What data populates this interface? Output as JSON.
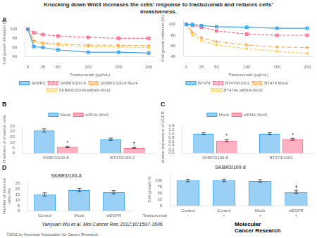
{
  "title": "Knocking down Wnt3 increases the cells’ response to trastuzumab and reduces cells’\ninvasiveness.",
  "annotations": [
    {
      "text": "Yanyuan Wu et al. Mol Cancer Res 2012;10:1597-1606"
    },
    {
      "text": "©2012 by American Association for Cancer Research"
    },
    {
      "text": "Molecular\nCancer Research"
    }
  ],
  "chart_data": [
    {
      "type": "line",
      "x_label": "Trastuzumab (μg/mL)",
      "y_label": "Cell growth inhibition (%)",
      "x": [
        0,
        10,
        25,
        50,
        100,
        150,
        200
      ],
      "series": [
        {
          "name": "SKBR3",
          "values": [
            100,
            62,
            60,
            55,
            50,
            50,
            48
          ],
          "marker": "square",
          "line_style": "solid"
        },
        {
          "name": "SKBR3/100-8",
          "values": [
            100,
            92,
            88,
            85,
            82,
            80,
            80
          ],
          "marker": "square",
          "line_style": "dashed"
        },
        {
          "name": "SKBR3/100-8 Mock",
          "values": [
            100,
            75,
            70,
            68,
            65,
            65,
            64
          ],
          "marker": "plus",
          "line_style": "dashdot"
        },
        {
          "name": "SKBR3/100-8+siRNA-Wnt3",
          "values": [
            100,
            72,
            67,
            65,
            62,
            61,
            60
          ],
          "marker": "x",
          "line_style": "dashed"
        }
      ],
      "xlim": [
        -5,
        210
      ],
      "xticks": [
        0,
        25,
        50,
        100,
        150,
        200
      ],
      "ylim": [
        40,
        108
      ],
      "yticks": [
        40,
        60,
        80,
        100
      ],
      "grid": false,
      "legend": "bottom",
      "annotations": [
        {
          "text": "A"
        }
      ]
    },
    {
      "type": "line",
      "x_label": "Trastuzumab (μg/mL)",
      "y_label": "Cell growth inhibition (%)",
      "x": [
        0,
        10,
        25,
        50,
        100,
        150,
        200
      ],
      "series": [
        {
          "name": "BT474",
          "values": [
            100,
            100,
            98,
            96,
            95,
            93,
            93
          ],
          "marker": "square",
          "line_style": "solid"
        },
        {
          "name": "BT474/100-2",
          "values": [
            100,
            98,
            95,
            88,
            82,
            80,
            80
          ],
          "marker": "square",
          "line_style": "dashed"
        },
        {
          "name": "BT474 Mock",
          "values": [
            100,
            85,
            75,
            68,
            62,
            58,
            57
          ],
          "marker": "plus",
          "line_style": "dashdot"
        },
        {
          "name": "BT474s siRNA-Wnt3",
          "values": [
            100,
            80,
            70,
            62,
            55,
            50,
            46
          ],
          "marker": "x",
          "line_style": "dashed"
        }
      ],
      "xlim": [
        -5,
        210
      ],
      "xticks": [
        0,
        25,
        50,
        100,
        150,
        200
      ],
      "ylim": [
        40,
        108
      ],
      "yticks": [
        40,
        60,
        80,
        100
      ],
      "grid": false,
      "legend": "bottom"
    },
    {
      "type": "bar",
      "y_label": "Numbers of invasive cells",
      "categories": [
        "SKBR3/100-8",
        "BT474/100-2"
      ],
      "series": [
        {
          "name": "Mock",
          "values": [
            21,
            13
          ],
          "errors": [
            1.5,
            1.0
          ]
        },
        {
          "name": "siRNA-Wnt3",
          "values": [
            6,
            5
          ],
          "errors": [
            0.5,
            0.5
          ]
        }
      ],
      "ylim": [
        0,
        27
      ],
      "yticks": [
        0,
        5,
        10,
        15,
        20,
        25
      ],
      "grid": false,
      "legend": "top",
      "annotations": [
        {
          "text": "B"
        },
        {
          "text": "*",
          "series": "siRNA-Wnt3",
          "category": "SKBR3/100-8"
        },
        {
          "text": "†",
          "series": "siRNA-Wnt3",
          "category": "BT474/100-2"
        }
      ]
    },
    {
      "type": "bar",
      "y_label": "Relative expression of EGFR",
      "categories": [
        "SKBR3/100-8",
        "BT474/1002"
      ],
      "series": [
        {
          "name": "Mock",
          "values": [
            1.0,
            1.0
          ],
          "errors": [
            0.05,
            0.05
          ]
        },
        {
          "name": "siRNA-Wnt3",
          "values": [
            0.65,
            0.72
          ],
          "errors": [
            0.05,
            0.05
          ]
        }
      ],
      "ylim": [
        0,
        1.5
      ],
      "yticks": [
        {
          "value": 0,
          "label": "0.0"
        },
        0.2,
        0.4,
        0.6,
        0.8,
        {
          "value": 1,
          "label": "1.0"
        },
        1.2,
        1.4
      ],
      "grid": false,
      "legend": "top",
      "annotations": [
        {
          "text": "C"
        },
        {
          "text": "*",
          "series": "siRNA-Wnt3",
          "category": "SKBR3/100-8"
        },
        {
          "text": "*",
          "series": "siRNA-Wnt3",
          "category": "BT474/1002"
        }
      ]
    },
    {
      "type": "bar",
      "title": "SKBR3/100-8",
      "y_label": "Number of invasive\ncells (%)",
      "categories": [
        "Control",
        "Mock",
        "siEGFR"
      ],
      "values": [
        15,
        19,
        17
      ],
      "errors": [
        1.5,
        1.5,
        1.5
      ],
      "ylim": [
        0,
        27
      ],
      "yticks": [
        0,
        5,
        10,
        15,
        20,
        25
      ],
      "grid": false,
      "annotations": [
        {
          "text": "D"
        }
      ]
    },
    {
      "type": "bar",
      "title": "SKBR3/100-8",
      "y_label": "Cell growth %",
      "categories": [
        "Control",
        "Control",
        "Mock",
        "siEGFR"
      ],
      "category_row": {
        "name": "Trastuzumab",
        "labels": [
          "-",
          "+",
          "+",
          "+"
        ]
      },
      "values": [
        100,
        100,
        98,
        55
      ],
      "errors": [
        5,
        5,
        5,
        5
      ],
      "ylim": [
        0,
        130
      ],
      "yticks": [
        0,
        25,
        50,
        75,
        100
      ],
      "grid": false,
      "annotations": [
        {
          "text": "†",
          "category": "siEGFR"
        }
      ]
    }
  ]
}
